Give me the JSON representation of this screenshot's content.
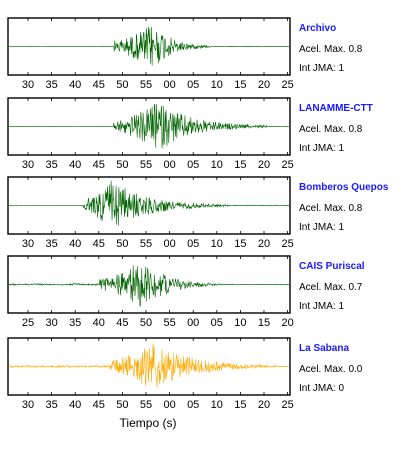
{
  "chart_data": {
    "type": "line",
    "xlabel": "Tiempo (s)",
    "stations": [
      {
        "name": "Archivo",
        "acel_label": "Acel. Max. 0.8",
        "jma_label": "Int JMA: 1",
        "color": "#006400",
        "ticks": [
          "30",
          "35",
          "40",
          "45",
          "50",
          "55",
          "00",
          "05",
          "10",
          "15",
          "20",
          "25"
        ],
        "tick_offset": 0,
        "onset": 47.5,
        "peak": 56,
        "peak_amp": 0.9,
        "end": 68,
        "pre_amp": 0.0
      },
      {
        "name": "LANAMME-CTT",
        "acel_label": "Acel. Max. 0.8",
        "jma_label": "Int JMA: 1",
        "color": "#006400",
        "ticks": [
          "30",
          "35",
          "40",
          "45",
          "50",
          "55",
          "00",
          "05",
          "10",
          "15",
          "20",
          "25"
        ],
        "tick_offset": 0,
        "onset": 47.5,
        "peak": 57,
        "peak_amp": 0.95,
        "end": 80,
        "pre_amp": 0.0
      },
      {
        "name": "Bomberos Quepos",
        "acel_label": "Acel. Max. 0.8",
        "jma_label": "Int JMA: 1",
        "color": "#006400",
        "ticks": [
          "30",
          "35",
          "40",
          "45",
          "50",
          "55",
          "00",
          "05",
          "10",
          "15",
          "20",
          "25"
        ],
        "tick_offset": 0,
        "onset": 41,
        "peak": 47,
        "peak_amp": 0.95,
        "end": 72,
        "pre_amp": 0.0
      },
      {
        "name": "CAIS Puriscal",
        "acel_label": "Acel. Max. 0.7",
        "jma_label": "Int JMA: 1",
        "color": "#006400",
        "ticks": [
          "25",
          "30",
          "35",
          "40",
          "45",
          "50",
          "55",
          "00",
          "05",
          "10",
          "15",
          "20"
        ],
        "tick_offset": 0,
        "onset": 44.5,
        "peak": 53.5,
        "peak_amp": 0.95,
        "end": 70,
        "pre_amp": 0.04
      },
      {
        "name": "La Sabana",
        "acel_label": "Acel. Max. 0.0",
        "jma_label": "Int JMA: 0",
        "color": "#ffaa00",
        "ticks": [
          "30",
          "35",
          "40",
          "45",
          "50",
          "55",
          "00",
          "05",
          "10",
          "15",
          "20",
          "25"
        ],
        "tick_offset": 0,
        "onset": 46.5,
        "peak": 56,
        "peak_amp": 0.95,
        "end": 82,
        "pre_amp": 0.05
      }
    ]
  }
}
